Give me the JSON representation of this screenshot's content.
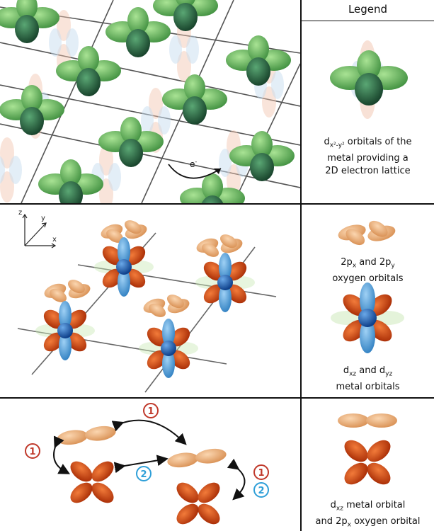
{
  "legend": {
    "title": "Legend",
    "caption1_line1_pre": "d",
    "caption1_sub": "x²-y²",
    "caption1_line1_post": " orbitals of the",
    "caption1_line2": "metal providing a",
    "caption1_line3": "2D electron lattice",
    "caption2_a": "2p",
    "caption2_a_sub": "x",
    "caption2_mid": " and 2p",
    "caption2_b_sub": "y",
    "caption2_line2": "oxygen orbitals",
    "caption3_a": "d",
    "caption3_a_sub": "xz",
    "caption3_mid": " and d",
    "caption3_b_sub": "yz",
    "caption3_line2": "metal orbitals",
    "caption4_a": "d",
    "caption4_a_sub": "xz",
    "caption4_post": " metal orbital",
    "caption4_line2_pre": "and 2p",
    "caption4_line2_sub": "x",
    "caption4_line2_post": " oxygen orbital"
  },
  "panel1": {
    "electron_label": "e",
    "electron_sup": "-"
  },
  "panel2": {
    "axis_x": "x",
    "axis_y": "y",
    "axis_z": "z"
  },
  "panel3": {
    "steps": [
      "1",
      "1",
      "2",
      "1",
      "2"
    ]
  },
  "colors": {
    "green_dark": "#2d6b45",
    "green_light": "#6cc36a",
    "peach": "#f0b27a",
    "red_orange": "#d9480f",
    "blue": "#4a9fe0",
    "circle_red": "#c0392b",
    "circle_blue": "#2e9fd8"
  }
}
